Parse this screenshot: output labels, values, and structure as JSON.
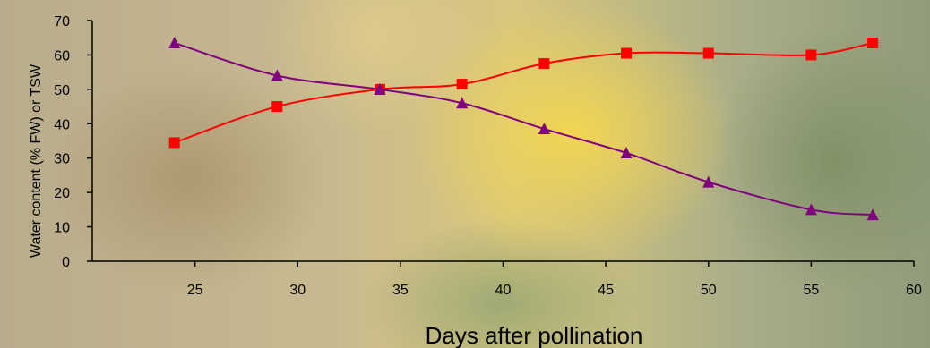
{
  "chart_data": {
    "type": "line",
    "title": "",
    "xlabel": "Days after pollination",
    "ylabel": "Water content (% FW) or TSW",
    "xlim": [
      20,
      60
    ],
    "ylim": [
      0,
      70
    ],
    "xticks": [
      25,
      30,
      35,
      40,
      45,
      50,
      55,
      60
    ],
    "yticks": [
      0,
      10,
      20,
      30,
      40,
      50,
      60,
      70
    ],
    "grid": false,
    "series": [
      {
        "marker": "square",
        "color": "#ff0000",
        "x": [
          24,
          29,
          34,
          38,
          42,
          46,
          50,
          55,
          58
        ],
        "y": [
          34.5,
          45,
          50,
          51.5,
          57.5,
          60.5,
          60.5,
          60,
          63.5
        ]
      },
      {
        "marker": "triangle",
        "color": "#800080",
        "x": [
          24,
          29,
          34,
          38,
          42,
          46,
          50,
          55,
          58
        ],
        "y": [
          63.5,
          54,
          50,
          46,
          38.5,
          31.5,
          23,
          15,
          13.5
        ]
      }
    ]
  }
}
